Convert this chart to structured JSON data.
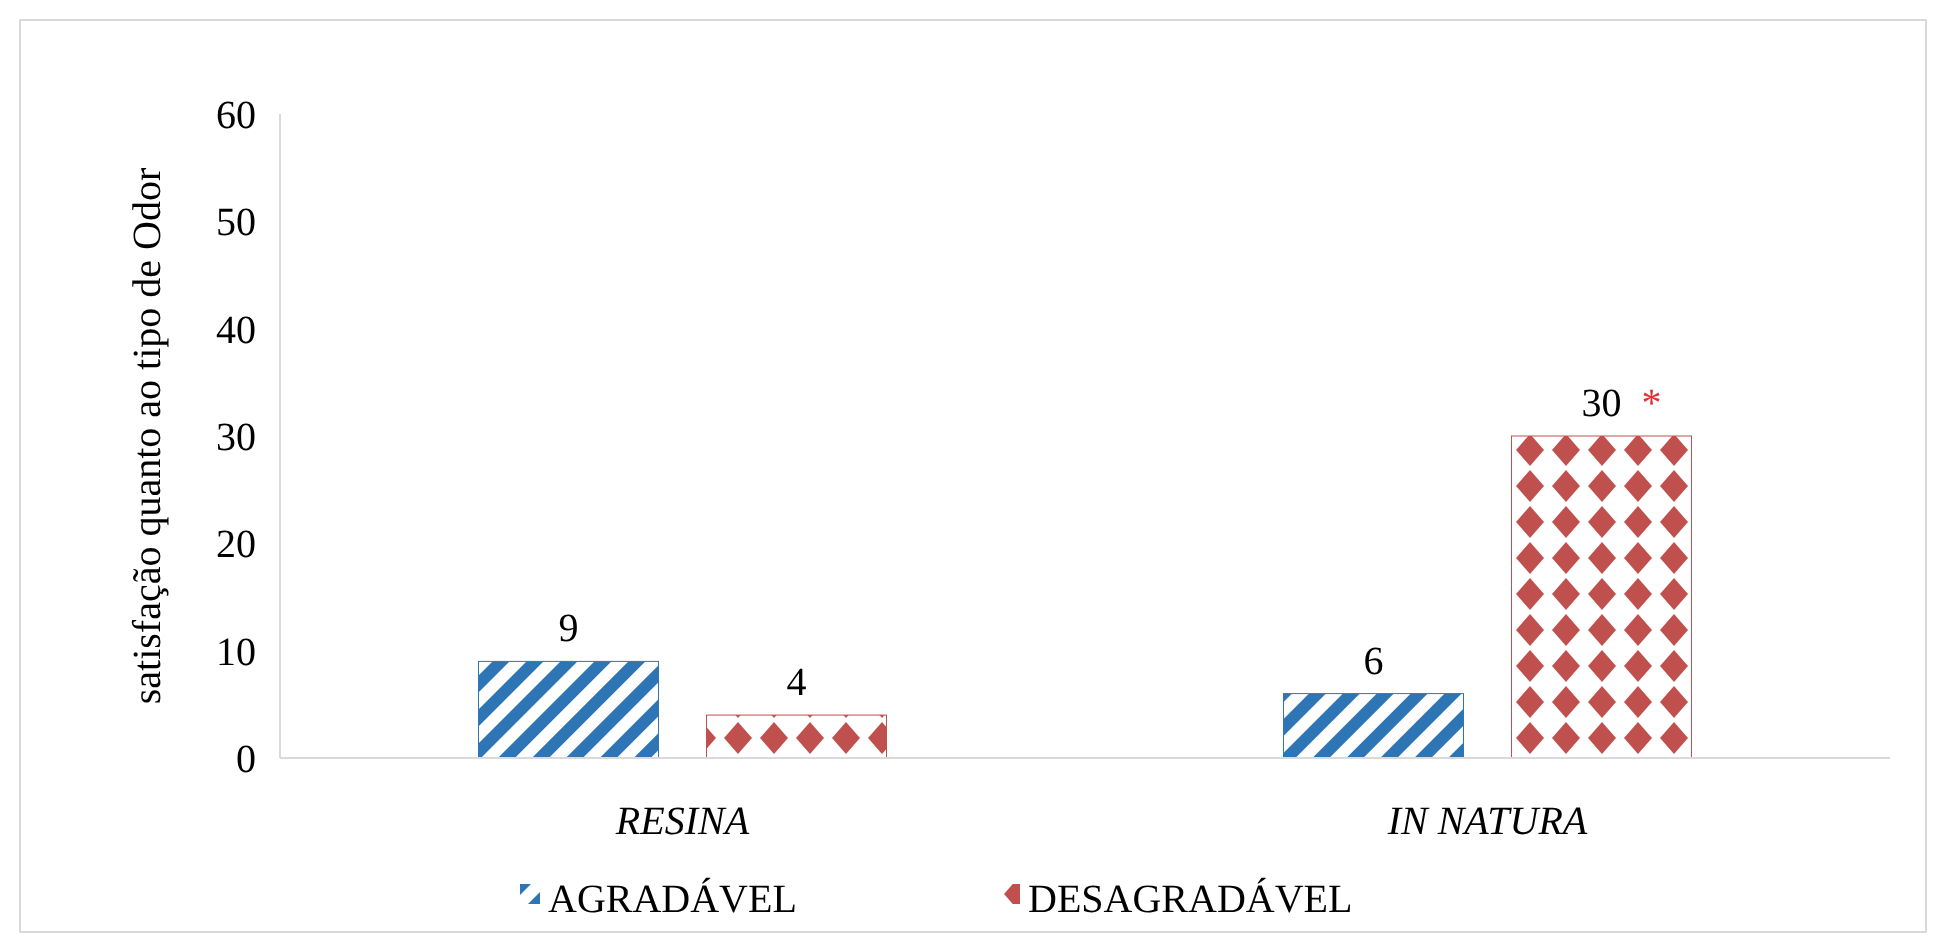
{
  "chart_data": {
    "type": "bar",
    "ylabel": "satisfação quanto ao tipo de Odor",
    "categories": [
      "RESINA",
      "IN NATURA"
    ],
    "series": [
      {
        "name": "AGRADÁVEL",
        "color": "#2e75b6",
        "values": [
          9,
          6
        ]
      },
      {
        "name": "DESAGRADÁVEL",
        "color": "#c0504d",
        "values": [
          4,
          30
        ]
      }
    ],
    "ylim": [
      0,
      60
    ],
    "yticks": [
      0,
      10,
      20,
      30,
      40,
      50,
      60
    ],
    "grid": false,
    "legend": "bottom",
    "data_labels": true,
    "annotations": [
      "*"
    ]
  }
}
